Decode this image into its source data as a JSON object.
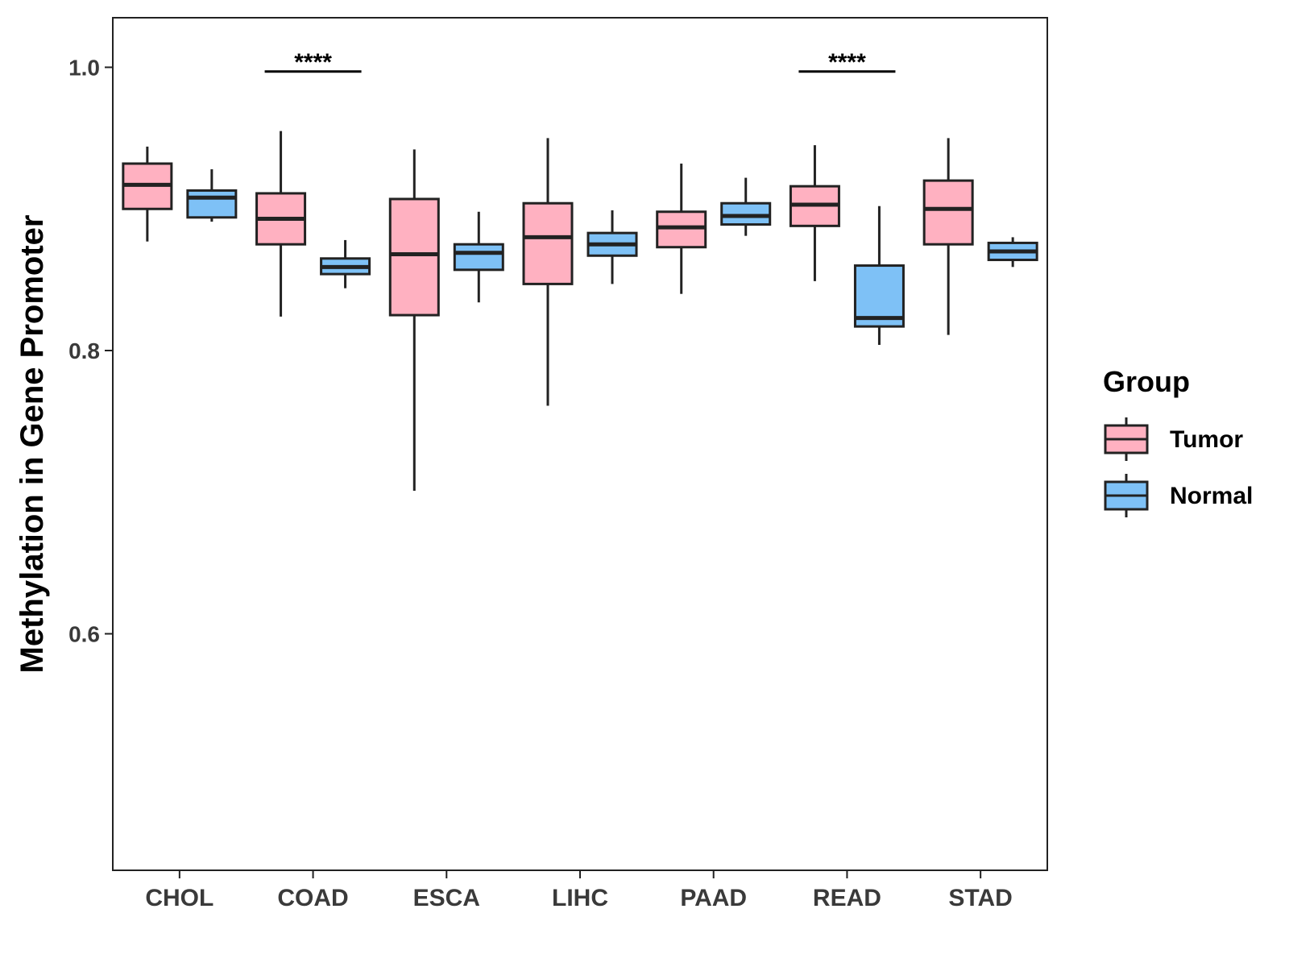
{
  "chart_data": {
    "type": "boxplot",
    "title": "",
    "xlabel": "",
    "ylabel": "Methylation in Gene Promoter",
    "ylim": [
      0.433,
      1.035
    ],
    "yticks": [
      0.6,
      0.8,
      1.0
    ],
    "ytick_labels": [
      "0.6",
      "0.8",
      "1.0"
    ],
    "grid": false,
    "categories": [
      "CHOL",
      "COAD",
      "ESCA",
      "LIHC",
      "PAAD",
      "READ",
      "STAD"
    ],
    "legend": {
      "title": "Group",
      "position": "right",
      "entries": [
        {
          "name": "Tumor",
          "color": "#FFB1C1"
        },
        {
          "name": "Normal",
          "color": "#7EC1F6"
        }
      ]
    },
    "series": [
      {
        "name": "Tumor",
        "color": "#FFB1C1",
        "boxes": [
          {
            "whisker_low": 0.877,
            "q1": 0.9,
            "median": 0.917,
            "q3": 0.932,
            "whisker_high": 0.944
          },
          {
            "whisker_low": 0.824,
            "q1": 0.875,
            "median": 0.893,
            "q3": 0.911,
            "whisker_high": 0.955
          },
          {
            "whisker_low": 0.701,
            "q1": 0.825,
            "median": 0.868,
            "q3": 0.907,
            "whisker_high": 0.942
          },
          {
            "whisker_low": 0.761,
            "q1": 0.847,
            "median": 0.88,
            "q3": 0.904,
            "whisker_high": 0.95
          },
          {
            "whisker_low": 0.84,
            "q1": 0.873,
            "median": 0.887,
            "q3": 0.898,
            "whisker_high": 0.932
          },
          {
            "whisker_low": 0.849,
            "q1": 0.888,
            "median": 0.903,
            "q3": 0.916,
            "whisker_high": 0.945
          },
          {
            "whisker_low": 0.811,
            "q1": 0.875,
            "median": 0.9,
            "q3": 0.92,
            "whisker_high": 0.95
          }
        ]
      },
      {
        "name": "Normal",
        "color": "#7EC1F6",
        "boxes": [
          {
            "whisker_low": 0.891,
            "q1": 0.894,
            "median": 0.908,
            "q3": 0.913,
            "whisker_high": 0.928
          },
          {
            "whisker_low": 0.844,
            "q1": 0.854,
            "median": 0.859,
            "q3": 0.865,
            "whisker_high": 0.878
          },
          {
            "whisker_low": 0.834,
            "q1": 0.857,
            "median": 0.869,
            "q3": 0.875,
            "whisker_high": 0.898
          },
          {
            "whisker_low": 0.847,
            "q1": 0.867,
            "median": 0.875,
            "q3": 0.883,
            "whisker_high": 0.899
          },
          {
            "whisker_low": 0.881,
            "q1": 0.889,
            "median": 0.895,
            "q3": 0.904,
            "whisker_high": 0.922
          },
          {
            "whisker_low": 0.804,
            "q1": 0.817,
            "median": 0.823,
            "q3": 0.86,
            "whisker_high": 0.902
          },
          {
            "whisker_low": 0.859,
            "q1": 0.864,
            "median": 0.87,
            "q3": 0.876,
            "whisker_high": 0.88
          }
        ]
      }
    ],
    "annotations": [
      {
        "category": "COAD",
        "label": "****",
        "y": 0.997
      },
      {
        "category": "READ",
        "label": "****",
        "y": 0.997
      }
    ]
  }
}
